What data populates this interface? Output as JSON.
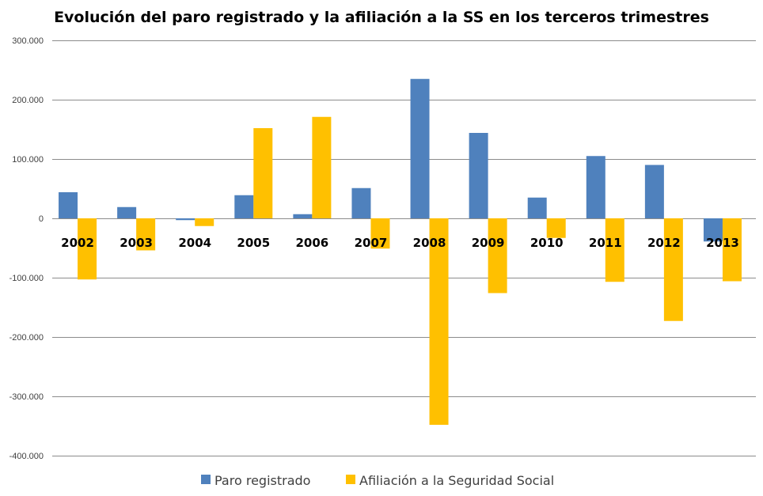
{
  "chart_data": {
    "type": "bar",
    "title": "Evolución del paro registrado y la afiliación a la SS en los terceros trimestres",
    "xlabel": "",
    "ylabel": "",
    "categories": [
      "2002",
      "2003",
      "2004",
      "2005",
      "2006",
      "2007",
      "2008",
      "2009",
      "2010",
      "2011",
      "2012",
      "2013"
    ],
    "series": [
      {
        "name": "Paro registrado",
        "color": "#4F81BD",
        "values": [
          44000,
          19000,
          -3000,
          39000,
          7000,
          51000,
          235000,
          144000,
          35000,
          105000,
          90000,
          -39000
        ]
      },
      {
        "name": "Afiliación a la Seguridad Social",
        "color": "#FFC000",
        "values": [
          -103000,
          -54000,
          -13000,
          152000,
          171000,
          -51000,
          -348000,
          -126000,
          -33000,
          -107000,
          -173000,
          -106000
        ]
      }
    ],
    "ylim": [
      -400000,
      300000
    ],
    "yticks": [
      300000,
      200000,
      100000,
      0,
      -100000,
      -200000,
      -300000,
      -400000
    ],
    "ytick_labels": [
      "300.000",
      "200.000",
      "100.000",
      "0",
      "-100.000",
      "-200.000",
      "-300.000",
      "-400.000"
    ],
    "grid": true,
    "legend_position": "bottom"
  }
}
